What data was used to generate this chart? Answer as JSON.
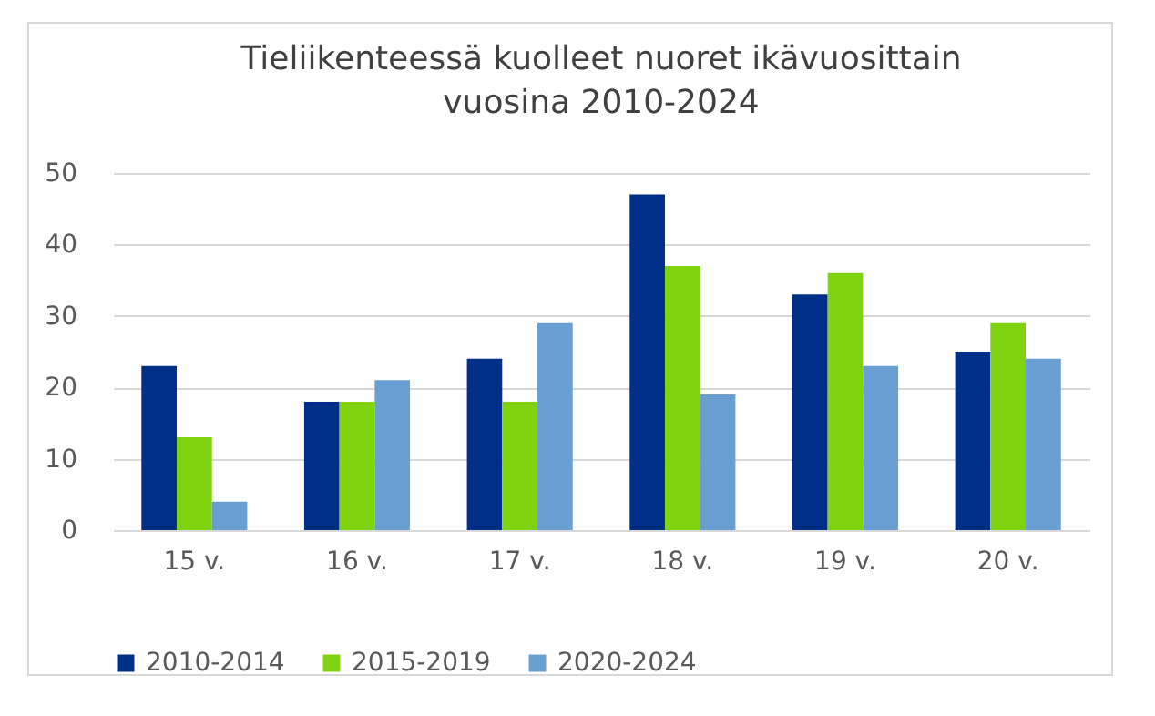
{
  "chart_data": {
    "type": "bar",
    "title": "Tieliikenteessä kuolleet nuoret ikävuosittain vuosina 2010-2024",
    "categories": [
      "15 v.",
      "16 v.",
      "17 v.",
      "18 v.",
      "19 v.",
      "20 v."
    ],
    "series": [
      {
        "name": "2010-2014",
        "color": "#002f87",
        "values": [
          23,
          18,
          24,
          47,
          33,
          25
        ]
      },
      {
        "name": "2015-2019",
        "color": "#7fd40f",
        "values": [
          13,
          18,
          18,
          37,
          36,
          29
        ]
      },
      {
        "name": "2020-2024",
        "color": "#6a9fd4",
        "values": [
          4,
          21,
          29,
          19,
          23,
          24
        ]
      }
    ],
    "ylim": [
      0,
      50
    ],
    "yticks": [
      0,
      10,
      20,
      30,
      40,
      50
    ],
    "grid": "y",
    "legend": "bottom"
  }
}
